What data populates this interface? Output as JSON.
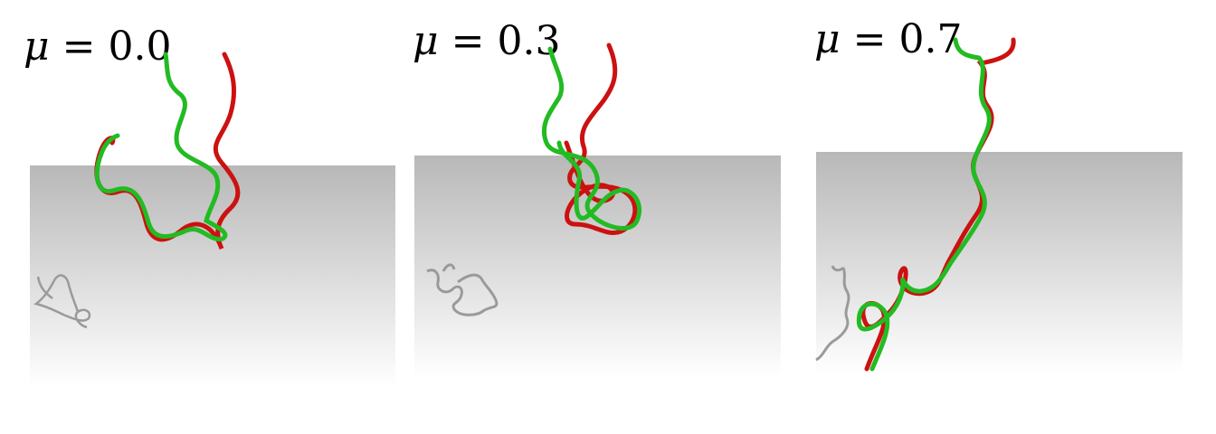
{
  "panels": [
    {
      "symbol": "μ",
      "equals": "=",
      "value": "0.0"
    },
    {
      "symbol": "μ",
      "equals": "=",
      "value": "0.3"
    },
    {
      "symbol": "μ",
      "equals": "=",
      "value": "0.7"
    }
  ],
  "colors": {
    "chain_red": "#cc1111",
    "chain_green": "#22bb22",
    "shadow": "#9a9a9a",
    "surface_top": "#b8b8b8",
    "surface_bottom": "#ffffff"
  }
}
